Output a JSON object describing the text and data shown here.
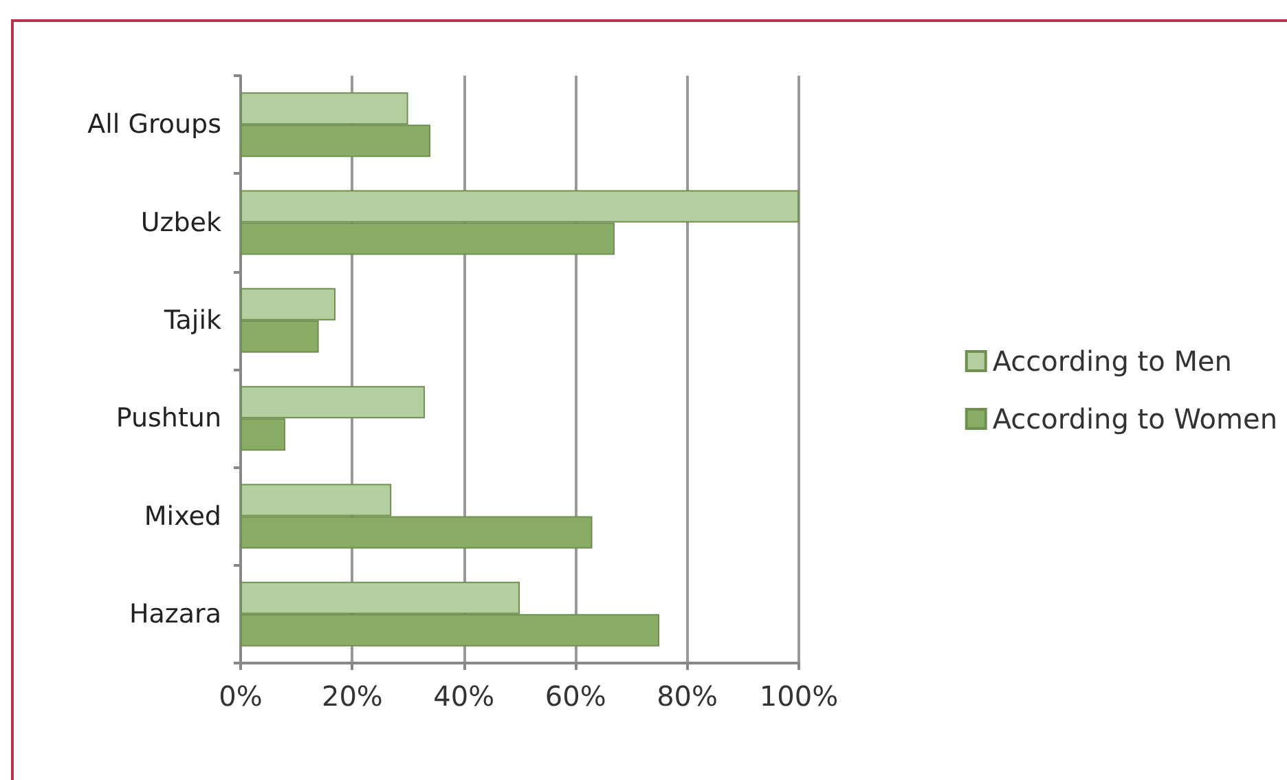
{
  "chart_data": {
    "type": "bar",
    "orientation": "horizontal",
    "categories": [
      "All Groups",
      "Uzbek",
      "Tajik",
      "Pushtun",
      "Mixed",
      "Hazara"
    ],
    "series": [
      {
        "name": "According to Men",
        "color": "#b3cf9f",
        "values": [
          30,
          100,
          17,
          33,
          27,
          50
        ]
      },
      {
        "name": "According to Women",
        "color": "#8aad65",
        "values": [
          34,
          67,
          14,
          8,
          63,
          75
        ]
      }
    ],
    "xlim": [
      0,
      100
    ],
    "xticks": [
      {
        "value": 0,
        "label": "0%"
      },
      {
        "value": 20,
        "label": "20%"
      },
      {
        "value": 40,
        "label": "40%"
      },
      {
        "value": 60,
        "label": "60%"
      },
      {
        "value": 80,
        "label": "80%"
      },
      {
        "value": 100,
        "label": "100%"
      }
    ],
    "grid": "x",
    "legend": "right"
  }
}
